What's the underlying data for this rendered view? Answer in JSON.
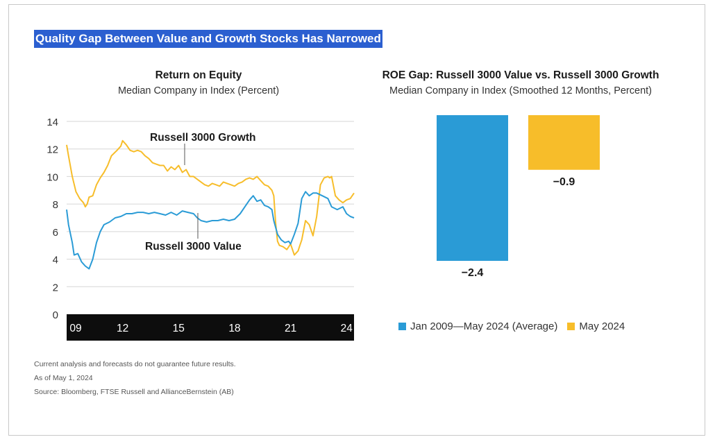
{
  "headline": "Quality Gap Between Value and Growth Stocks Has Narrowed",
  "colors": {
    "growth": "#f7bd2a",
    "value": "#2a9bd6",
    "axis_band": "#0d0d0d",
    "headline_bg": "#2b5fd0"
  },
  "chart_data": [
    {
      "type": "line",
      "title": "Return on Equity",
      "subtitle": "Median Company in Index (Percent)",
      "xlabel": "",
      "ylabel": "",
      "x_ticks": [
        "09",
        "12",
        "15",
        "18",
        "21",
        "24"
      ],
      "y_ticks": [
        "0",
        "2",
        "4",
        "6",
        "8",
        "10",
        "12",
        "14"
      ],
      "xlim": [
        2009.0,
        2024.4
      ],
      "ylim": [
        0,
        14
      ],
      "grid": true,
      "series": [
        {
          "name": "Russell 3000 Growth",
          "color": "#f7bd2a",
          "x": [
            2009.0,
            2009.1,
            2009.3,
            2009.5,
            2009.7,
            2009.9,
            2010.0,
            2010.1,
            2010.2,
            2010.4,
            2010.6,
            2010.8,
            2011.0,
            2011.2,
            2011.4,
            2011.7,
            2011.9,
            2012.0,
            2012.2,
            2012.4,
            2012.6,
            2012.8,
            2013.0,
            2013.2,
            2013.4,
            2013.6,
            2013.8,
            2014.0,
            2014.2,
            2014.4,
            2014.6,
            2014.8,
            2015.0,
            2015.2,
            2015.4,
            2015.6,
            2015.8,
            2016.0,
            2016.2,
            2016.4,
            2016.6,
            2016.8,
            2017.0,
            2017.2,
            2017.4,
            2017.6,
            2017.8,
            2018.0,
            2018.2,
            2018.4,
            2018.6,
            2018.8,
            2019.0,
            2019.2,
            2019.4,
            2019.6,
            2019.8,
            2020.0,
            2020.1,
            2020.2,
            2020.3,
            2020.4,
            2020.6,
            2020.8,
            2021.0,
            2021.2,
            2021.4,
            2021.5,
            2021.6,
            2021.8,
            2022.0,
            2022.2,
            2022.4,
            2022.6,
            2022.8,
            2023.0,
            2023.1,
            2023.2,
            2023.4,
            2023.6,
            2023.8,
            2024.0,
            2024.2,
            2024.4
          ],
          "values": [
            12.3,
            11.5,
            10.0,
            8.9,
            8.4,
            8.1,
            7.8,
            8.0,
            8.5,
            8.6,
            9.4,
            9.9,
            10.3,
            10.8,
            11.5,
            11.9,
            12.2,
            12.6,
            12.3,
            11.9,
            11.8,
            11.9,
            11.8,
            11.5,
            11.3,
            11.0,
            10.9,
            10.8,
            10.8,
            10.4,
            10.7,
            10.5,
            10.8,
            10.3,
            10.5,
            10.0,
            10.0,
            9.8,
            9.6,
            9.4,
            9.3,
            9.5,
            9.4,
            9.3,
            9.6,
            9.5,
            9.4,
            9.3,
            9.5,
            9.6,
            9.8,
            9.9,
            9.8,
            10.0,
            9.7,
            9.4,
            9.3,
            9.0,
            8.6,
            6.6,
            5.3,
            5.0,
            4.9,
            4.7,
            5.1,
            4.3,
            4.6,
            5.0,
            5.4,
            6.8,
            6.5,
            5.7,
            7.1,
            9.4,
            9.9,
            10.0,
            9.9,
            10.0,
            8.6,
            8.3,
            8.1,
            8.3,
            8.4,
            8.8
          ]
        },
        {
          "name": "Russell 3000 Value",
          "color": "#2a9bd6",
          "x": [
            2009.0,
            2009.1,
            2009.3,
            2009.4,
            2009.6,
            2009.8,
            2010.0,
            2010.2,
            2010.4,
            2010.6,
            2010.8,
            2011.0,
            2011.3,
            2011.6,
            2011.9,
            2012.2,
            2012.5,
            2012.8,
            2013.1,
            2013.4,
            2013.7,
            2014.0,
            2014.3,
            2014.6,
            2014.9,
            2015.2,
            2015.5,
            2015.8,
            2016.0,
            2016.2,
            2016.5,
            2016.8,
            2017.1,
            2017.4,
            2017.7,
            2018.0,
            2018.3,
            2018.6,
            2018.8,
            2019.0,
            2019.2,
            2019.4,
            2019.6,
            2019.8,
            2020.0,
            2020.1,
            2020.2,
            2020.3,
            2020.5,
            2020.7,
            2020.9,
            2021.0,
            2021.2,
            2021.4,
            2021.6,
            2021.8,
            2022.0,
            2022.2,
            2022.4,
            2022.7,
            2023.0,
            2023.2,
            2023.5,
            2023.8,
            2024.0,
            2024.2,
            2024.4
          ],
          "values": [
            7.6,
            6.5,
            5.2,
            4.3,
            4.4,
            3.8,
            3.5,
            3.3,
            4.0,
            5.2,
            6.0,
            6.5,
            6.7,
            7.0,
            7.1,
            7.3,
            7.3,
            7.4,
            7.4,
            7.3,
            7.4,
            7.3,
            7.2,
            7.4,
            7.2,
            7.5,
            7.4,
            7.3,
            7.0,
            6.8,
            6.7,
            6.8,
            6.8,
            6.9,
            6.8,
            6.9,
            7.3,
            7.9,
            8.3,
            8.6,
            8.2,
            8.3,
            7.9,
            7.8,
            7.6,
            6.8,
            6.3,
            5.8,
            5.4,
            5.2,
            5.3,
            5.1,
            5.8,
            6.6,
            8.4,
            8.9,
            8.6,
            8.8,
            8.8,
            8.6,
            8.4,
            7.8,
            7.6,
            7.8,
            7.3,
            7.1,
            7.0
          ]
        }
      ],
      "annotations": [
        "Russell 3000 Growth",
        "Russell 3000 Value"
      ]
    },
    {
      "type": "bar",
      "title": "ROE Gap: Russell 3000 Value vs. Russell 3000 Growth",
      "subtitle": "Median Company in Index (Smoothed 12 Months, Percent)",
      "categories": [
        "Jan 2009—May 2024 (Average)",
        "May 2024"
      ],
      "values": [
        -2.4,
        -0.9
      ],
      "data_labels": [
        "−2.4",
        "−0.9"
      ],
      "colors": [
        "#2a9bd6",
        "#f7bd2a"
      ],
      "legend": "bottom",
      "ylim": [
        -2.4,
        0
      ]
    }
  ],
  "footnotes": [
    "Current analysis and forecasts do not guarantee future results.",
    "As of May 1, 2024",
    "Source: Bloomberg, FTSE Russell and AllianceBernstein (AB)"
  ]
}
